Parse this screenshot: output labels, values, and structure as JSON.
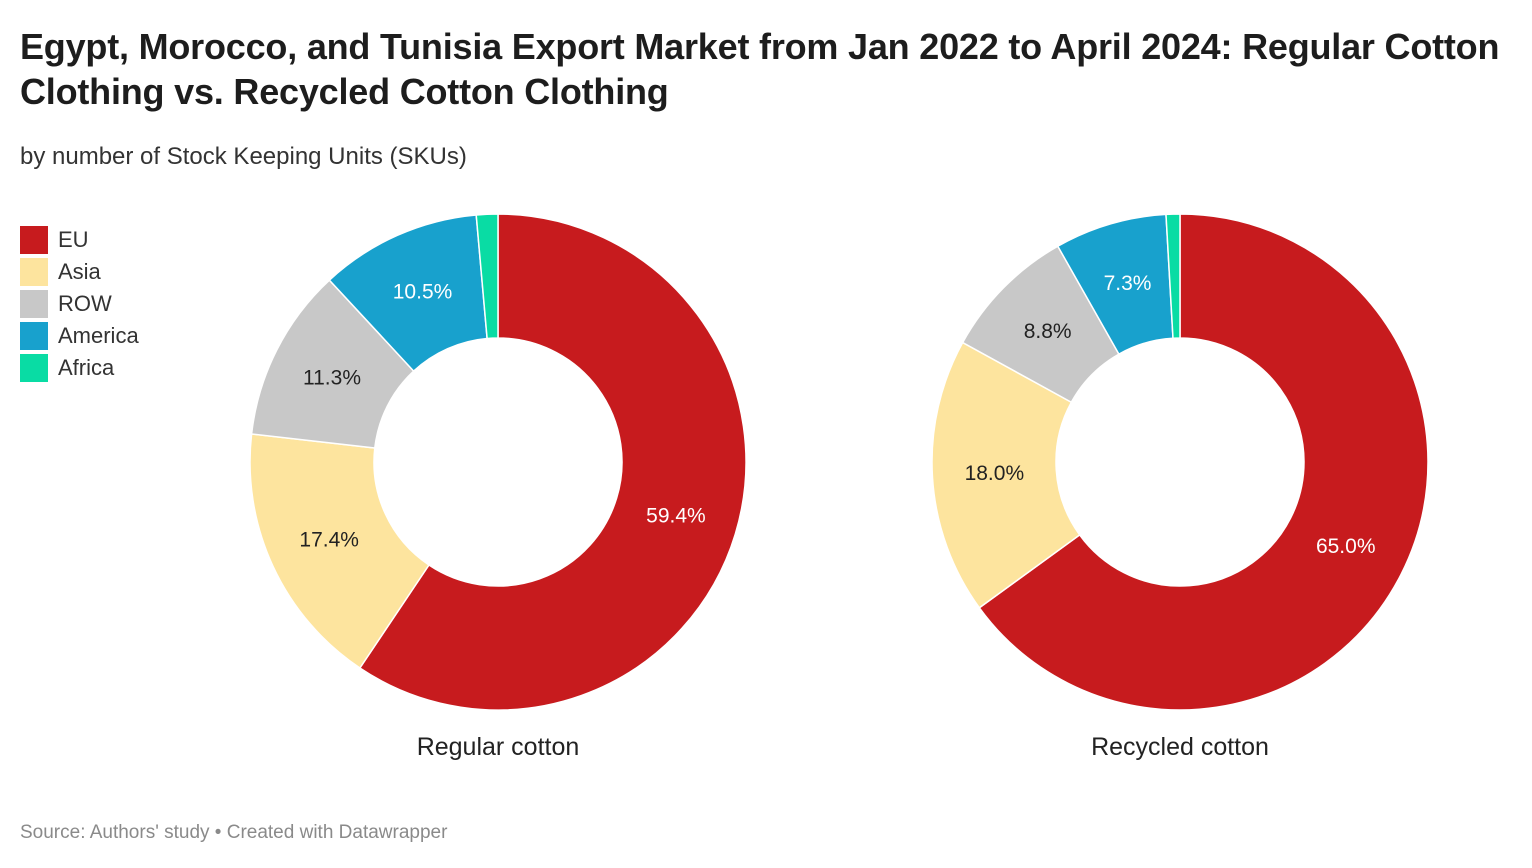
{
  "header": {
    "title": "Egypt, Morocco, and Tunisia Export Market from Jan 2022 to April 2024: Regular Cotton Clothing vs. Recycled Cotton Clothing",
    "subtitle": "by number of Stock Keeping Units (SKUs)"
  },
  "legend": [
    {
      "label": "EU",
      "color": "#c71b1e"
    },
    {
      "label": "Asia",
      "color": "#fde49e"
    },
    {
      "label": "ROW",
      "color": "#c8c8c8"
    },
    {
      "label": "America",
      "color": "#18a1cd"
    },
    {
      "label": "Africa",
      "color": "#09dca4"
    }
  ],
  "chart_data": [
    {
      "type": "pie",
      "title": "Regular cotton",
      "categories": [
        "EU",
        "Asia",
        "ROW",
        "America",
        "Africa"
      ],
      "values": [
        59.4,
        17.4,
        11.3,
        10.5,
        1.4
      ],
      "labels": [
        "59.4%",
        "17.4%",
        "11.3%",
        "10.5%",
        ""
      ],
      "colors": [
        "#c71b1e",
        "#fde49e",
        "#c8c8c8",
        "#18a1cd",
        "#09dca4"
      ],
      "label_colors": [
        "#ffffff",
        "#222222",
        "#222222",
        "#ffffff",
        "#222222"
      ],
      "donut": true
    },
    {
      "type": "pie",
      "title": "Recycled cotton",
      "categories": [
        "EU",
        "Asia",
        "ROW",
        "America",
        "Africa"
      ],
      "values": [
        65.0,
        18.0,
        8.8,
        7.3,
        0.9
      ],
      "labels": [
        "65.0%",
        "18.0%",
        "8.8%",
        "7.3%",
        ""
      ],
      "colors": [
        "#c71b1e",
        "#fde49e",
        "#c8c8c8",
        "#18a1cd",
        "#09dca4"
      ],
      "label_colors": [
        "#ffffff",
        "#222222",
        "#222222",
        "#ffffff",
        "#222222"
      ],
      "donut": true
    }
  ],
  "footer": {
    "source": "Source: Authors' study • Created with Datawrapper"
  }
}
